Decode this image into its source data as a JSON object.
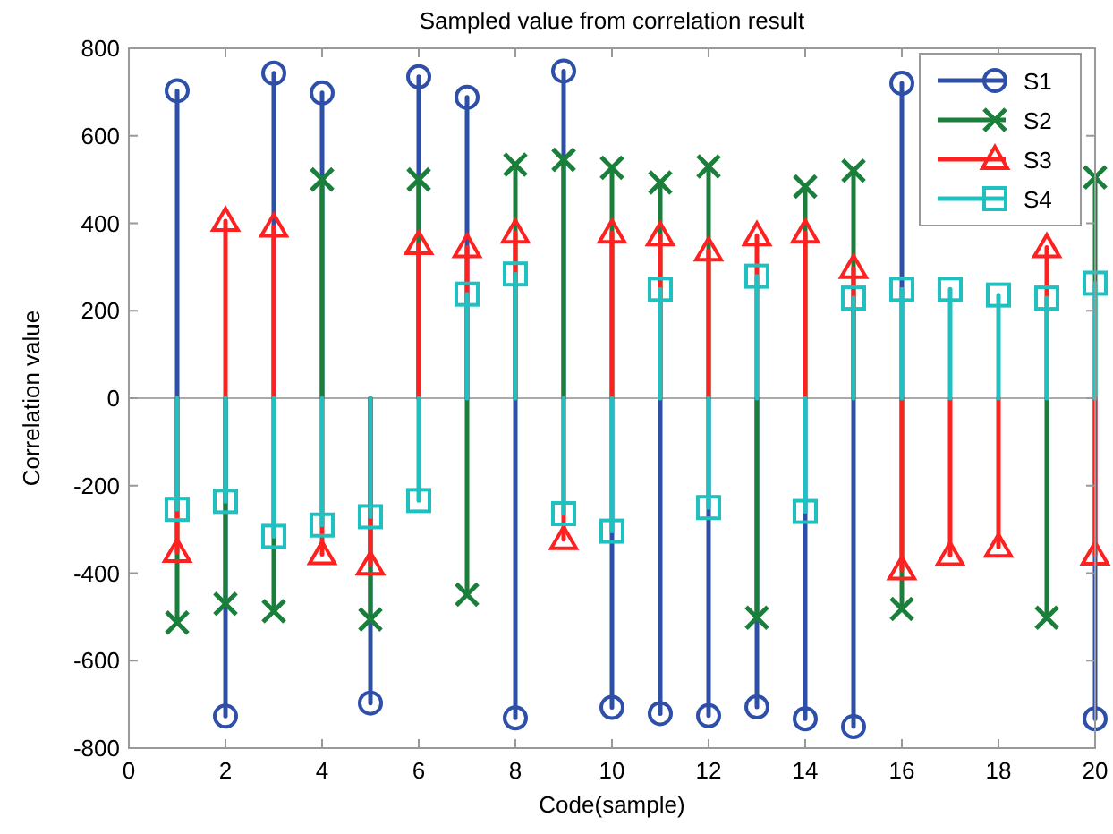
{
  "chart_data": {
    "type": "lollipop",
    "title": "Sampled value from correlation result",
    "xlabel": "Code(sample)",
    "ylabel": "Correlation value",
    "x": [
      1,
      2,
      3,
      4,
      5,
      6,
      7,
      8,
      9,
      10,
      11,
      12,
      13,
      14,
      15,
      16,
      17,
      18,
      19,
      20
    ],
    "xlim": [
      0,
      20
    ],
    "xticks": [
      0,
      2,
      4,
      6,
      8,
      10,
      12,
      14,
      16,
      18,
      20
    ],
    "ylim": [
      -800,
      800
    ],
    "yticks": [
      -800,
      -600,
      -400,
      -200,
      0,
      200,
      400,
      600,
      800
    ],
    "grid": false,
    "ref_lines": [
      {
        "axis": "y",
        "value": 0,
        "color": "#aaaaaa"
      }
    ],
    "legend": "top right",
    "line_style": "solid",
    "series": [
      {
        "name": "S1",
        "color": "#2e4fa8",
        "marker": "circle",
        "values": [
          703,
          -727,
          743,
          698,
          -697,
          735,
          688,
          -731,
          748,
          -707,
          -721,
          -726,
          -706,
          -733,
          -751,
          720,
          null,
          null,
          null,
          -733
        ]
      },
      {
        "name": "S2",
        "color": "#1a7f3a",
        "marker": "cross",
        "values": [
          -513,
          -470,
          -487,
          500,
          -506,
          500,
          -449,
          534,
          545,
          527,
          493,
          530,
          -502,
          484,
          520,
          -482,
          null,
          null,
          -502,
          505
        ]
      },
      {
        "name": "S3",
        "color": "#ff2020",
        "marker": "triangle",
        "values": [
          -352,
          405,
          392,
          -357,
          -381,
          352,
          345,
          378,
          -323,
          378,
          372,
          337,
          372,
          378,
          297,
          -392,
          -359,
          -340,
          345,
          -358
        ]
      },
      {
        "name": "S4",
        "color": "#20c0c0",
        "marker": "square",
        "values": [
          -254,
          -236,
          -316,
          -290,
          -271,
          -234,
          238,
          284,
          -264,
          -304,
          249,
          -250,
          279,
          -259,
          229,
          249,
          249,
          236,
          229,
          263
        ]
      }
    ]
  }
}
